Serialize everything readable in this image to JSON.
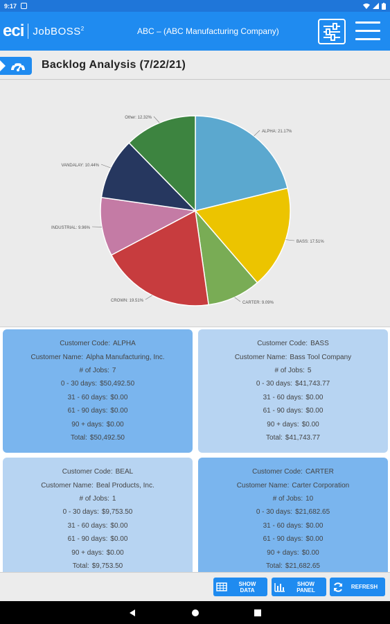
{
  "status_bar": {
    "time": "9:17"
  },
  "app_bar": {
    "logo_eci": "eci",
    "logo_product": "JobBOSS",
    "logo_sup": "2",
    "company": "ABC – (ABC Manufacturing Company)"
  },
  "page": {
    "title": "Backlog Analysis (7/22/21)"
  },
  "chart_data": {
    "type": "pie",
    "slices": [
      {
        "label": "ALPHA: 21.17%",
        "value": 21.17,
        "color": "#5ba8cf"
      },
      {
        "label": "BASS: 17.51%",
        "value": 17.51,
        "color": "#ecc400"
      },
      {
        "label": "CARTER: 9.09%",
        "value": 9.09,
        "color": "#79ac55"
      },
      {
        "label": "CROWN: 19.51%",
        "value": 19.51,
        "color": "#c73c3e"
      },
      {
        "label": "INDUSTRIAL: 9.96%",
        "value": 9.96,
        "color": "#c47ba5"
      },
      {
        "label": "VANDALAY: 10.44%",
        "value": 10.44,
        "color": "#26375f"
      },
      {
        "label": "Other: 12.32%",
        "value": 12.32,
        "color": "#3d8440"
      }
    ]
  },
  "cards": [
    {
      "code_label": "Customer Code:",
      "code": "ALPHA",
      "name_label": "Customer Name:",
      "name": "Alpha Manufacturing, Inc.",
      "jobs_label": "# of Jobs:",
      "jobs": "7",
      "d030_label": "0 - 30 days:",
      "d030": "$50,492.50",
      "d3160_label": "31 - 60 days:",
      "d3160": "$0.00",
      "d6190_label": "61 - 90 days:",
      "d6190": "$0.00",
      "d90_label": "90 + days:",
      "d90": "$0.00",
      "total_label": "Total:",
      "total": "$50,492.50"
    },
    {
      "code_label": "Customer Code:",
      "code": "BASS",
      "name_label": "Customer Name:",
      "name": "Bass Tool Company",
      "jobs_label": "# of Jobs:",
      "jobs": "5",
      "d030_label": "0 - 30 days:",
      "d030": "$41,743.77",
      "d3160_label": "31 - 60 days:",
      "d3160": "$0.00",
      "d6190_label": "61 - 90 days:",
      "d6190": "$0.00",
      "d90_label": "90 + days:",
      "d90": "$0.00",
      "total_label": "Total:",
      "total": "$41,743.77"
    },
    {
      "code_label": "Customer Code:",
      "code": "BEAL",
      "name_label": "Customer Name:",
      "name": "Beal Products, Inc.",
      "jobs_label": "# of Jobs:",
      "jobs": "1",
      "d030_label": "0 - 30 days:",
      "d030": "$9,753.50",
      "d3160_label": "31 - 60 days:",
      "d3160": "$0.00",
      "d6190_label": "61 - 90 days:",
      "d6190": "$0.00",
      "d90_label": "90 + days:",
      "d90": "$0.00",
      "total_label": "Total:",
      "total": "$9,753.50"
    },
    {
      "code_label": "Customer Code:",
      "code": "CARTER",
      "name_label": "Customer Name:",
      "name": "Carter Corporation",
      "jobs_label": "# of Jobs:",
      "jobs": "10",
      "d030_label": "0 - 30 days:",
      "d030": "$21,682.65",
      "d3160_label": "31 - 60 days:",
      "d3160": "$0.00",
      "d6190_label": "61 - 90 days:",
      "d6190": "$0.00",
      "d90_label": "90 + days:",
      "d90": "$0.00",
      "total_label": "Total:",
      "total": "$21,682.65"
    }
  ],
  "toolbar": {
    "show_data_l1": "SHOW",
    "show_data_l2": "DATA",
    "show_panel_l1": "SHOW",
    "show_panel_l2": "PANEL",
    "refresh": "REFRESH"
  }
}
